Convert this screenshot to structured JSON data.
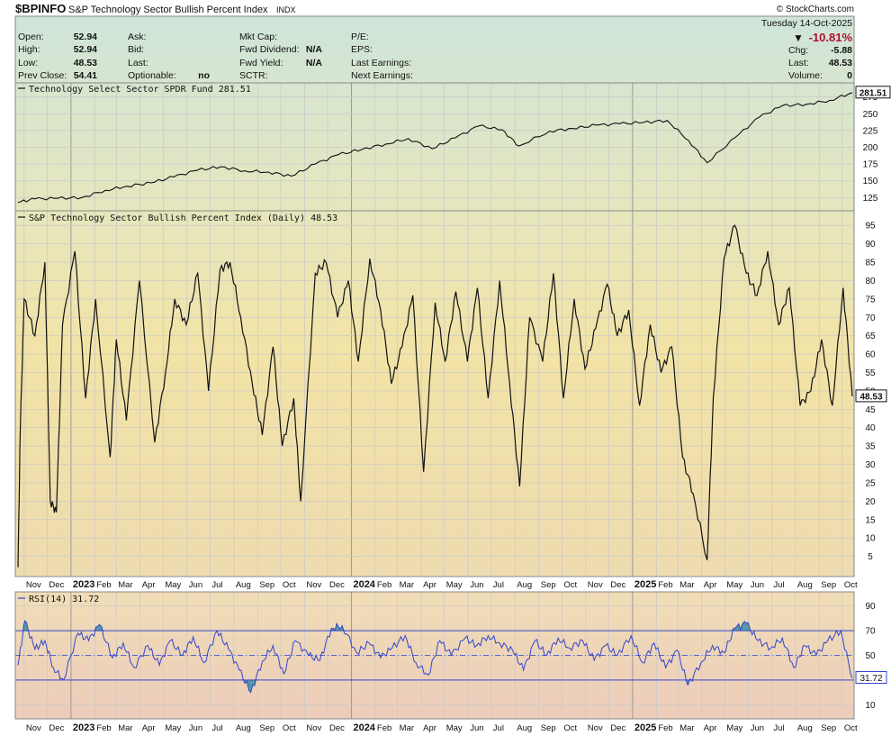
{
  "header": {
    "symbol": "$BPINFO",
    "name": "S&P Technology Sector Bullish Percent Index",
    "exchange": "INDX",
    "watermark": "© StockCharts.com",
    "date": "Tuesday  14-Oct-2025",
    "pct_change": "-10.81%",
    "down_arrow": "▼",
    "quote": {
      "open_label": "Open:",
      "open": "52.94",
      "high_label": "High:",
      "high": "52.94",
      "low_label": "Low:",
      "low": "48.53",
      "prev_label": "Prev Close:",
      "prev": "54.41",
      "ask_label": "Ask:",
      "bid_label": "Bid:",
      "last_label": "Last:",
      "optionable_label": "Optionable:",
      "optionable": "no",
      "mktcap_label": "Mkt Cap:",
      "fwd_div_label": "Fwd Dividend:",
      "fwd_div": "N/A",
      "fwd_yield_label": "Fwd Yield:",
      "fwd_yield": "N/A",
      "sctr_label": "SCTR:",
      "pe_label": "P/E:",
      "eps_label": "EPS:",
      "last_earn_label": "Last Earnings:",
      "next_earn_label": "Next Earnings:",
      "chg_label": "Chg:",
      "chg": "-5.88",
      "last2_label": "Last:",
      "last2": "48.53",
      "volume_label": "Volume:",
      "volume": "0"
    }
  },
  "colors": {
    "top_band": "#cfe5d9",
    "mid_band": "#f0e2a8",
    "rsi_bg": "#efd9b8",
    "line": "#111111",
    "rsi_line": "#3344cc",
    "rsi_fill": "#3a8fa0",
    "grid": "#c8c8c8",
    "down": "#b01030"
  },
  "chart_data": [
    {
      "type": "line",
      "title": "Technology Select Sector SPDR Fund 281.51",
      "last_value_label": "281.51",
      "yticks": [
        125,
        150,
        175,
        200,
        225,
        250,
        275
      ],
      "ylim": [
        108,
        292
      ],
      "x": [
        "2022-10-24",
        "2022-11-15",
        "2022-12-15",
        "2023-01-15",
        "2023-02-15",
        "2023-03-15",
        "2023-04-15",
        "2023-05-15",
        "2023-06-15",
        "2023-07-15",
        "2023-08-15",
        "2023-09-15",
        "2023-10-15",
        "2023-11-15",
        "2023-12-15",
        "2024-01-15",
        "2024-02-15",
        "2024-03-15",
        "2024-04-15",
        "2024-05-15",
        "2024-06-15",
        "2024-07-15",
        "2024-08-06",
        "2024-09-15",
        "2024-10-15",
        "2024-11-15",
        "2024-12-15",
        "2025-01-15",
        "2025-02-15",
        "2025-03-15",
        "2025-04-08",
        "2025-05-15",
        "2025-06-15",
        "2025-07-15",
        "2025-08-15",
        "2025-09-15",
        "2025-10-14"
      ],
      "values": [
        118,
        123,
        124,
        125,
        136,
        142,
        147,
        156,
        166,
        171,
        165,
        163,
        157,
        175,
        189,
        197,
        205,
        213,
        198,
        214,
        232,
        226,
        202,
        224,
        228,
        233,
        235,
        237,
        240,
        210,
        177,
        215,
        245,
        262,
        264,
        270,
        281.51
      ]
    },
    {
      "type": "line",
      "title": "S&P Technology Sector Bullish Percent Index (Daily) 48.53",
      "last_value_label": "48.53",
      "yticks": [
        5,
        10,
        15,
        20,
        25,
        30,
        35,
        40,
        45,
        50,
        55,
        60,
        65,
        70,
        75,
        80,
        85,
        90,
        95
      ],
      "ylim": [
        0,
        98
      ],
      "x": [
        "2022-10-24",
        "2022-10-27",
        "2022-11-01",
        "2022-11-15",
        "2022-11-28",
        "2022-12-05",
        "2022-12-13",
        "2022-12-21",
        "2023-01-06",
        "2023-01-20",
        "2023-02-02",
        "2023-02-21",
        "2023-03-01",
        "2023-03-14",
        "2023-03-31",
        "2023-04-20",
        "2023-05-04",
        "2023-05-16",
        "2023-05-31",
        "2023-06-15",
        "2023-06-29",
        "2023-07-14",
        "2023-07-27",
        "2023-08-10",
        "2023-08-25",
        "2023-09-07",
        "2023-09-21",
        "2023-10-03",
        "2023-10-18",
        "2023-10-27",
        "2023-11-15",
        "2023-11-29",
        "2023-12-14",
        "2023-12-28",
        "2024-01-10",
        "2024-01-25",
        "2024-02-08",
        "2024-02-22",
        "2024-03-07",
        "2024-03-21",
        "2024-04-04",
        "2024-04-19",
        "2024-05-02",
        "2024-05-16",
        "2024-05-31",
        "2024-06-13",
        "2024-06-27",
        "2024-07-12",
        "2024-07-25",
        "2024-08-07",
        "2024-08-20",
        "2024-09-06",
        "2024-09-20",
        "2024-10-03",
        "2024-10-17",
        "2024-10-31",
        "2024-11-14",
        "2024-11-29",
        "2024-12-12",
        "2024-12-27",
        "2025-01-10",
        "2025-01-24",
        "2025-02-07",
        "2025-02-21",
        "2025-03-07",
        "2025-03-21",
        "2025-04-08",
        "2025-04-16",
        "2025-04-30",
        "2025-05-14",
        "2025-05-29",
        "2025-06-12",
        "2025-06-26",
        "2025-07-10",
        "2025-07-24",
        "2025-08-07",
        "2025-08-21",
        "2025-09-04",
        "2025-09-18",
        "2025-10-02",
        "2025-10-14"
      ],
      "values": [
        2,
        40,
        75,
        65,
        85,
        20,
        17,
        68,
        88,
        48,
        75,
        32,
        64,
        42,
        80,
        36,
        55,
        75,
        68,
        82,
        50,
        83,
        85,
        70,
        52,
        38,
        62,
        35,
        48,
        20,
        82,
        85,
        70,
        80,
        58,
        86,
        72,
        52,
        62,
        76,
        28,
        74,
        58,
        77,
        58,
        78,
        48,
        80,
        52,
        24,
        70,
        58,
        82,
        48,
        75,
        56,
        67,
        79,
        65,
        72,
        46,
        68,
        55,
        62,
        32,
        22,
        4,
        48,
        86,
        95,
        82,
        76,
        88,
        68,
        78,
        46,
        50,
        64,
        46,
        78,
        48.53
      ]
    },
    {
      "type": "line",
      "title": "RSI(14) 31.72",
      "last_value_label": "31.72",
      "yticks": [
        10,
        30,
        50,
        70,
        90
      ],
      "ylim": [
        0,
        100
      ],
      "bands": [
        30,
        70
      ],
      "x": [
        "2022-10-24",
        "2022-11-02",
        "2022-11-15",
        "2022-11-28",
        "2022-12-09",
        "2022-12-22",
        "2023-01-10",
        "2023-01-24",
        "2023-02-07",
        "2023-02-24",
        "2023-03-10",
        "2023-03-24",
        "2023-04-11",
        "2023-04-26",
        "2023-05-10",
        "2023-05-26",
        "2023-06-09",
        "2023-06-23",
        "2023-07-10",
        "2023-07-25",
        "2023-08-08",
        "2023-08-23",
        "2023-09-07",
        "2023-09-21",
        "2023-10-05",
        "2023-10-20",
        "2023-11-06",
        "2023-11-21",
        "2023-12-06",
        "2023-12-20",
        "2024-01-08",
        "2024-01-24",
        "2024-02-08",
        "2024-02-23",
        "2024-03-11",
        "2024-03-25",
        "2024-04-10",
        "2024-04-25",
        "2024-05-10",
        "2024-05-28",
        "2024-06-12",
        "2024-06-27",
        "2024-07-12",
        "2024-07-29",
        "2024-08-12",
        "2024-08-27",
        "2024-09-11",
        "2024-09-26",
        "2024-10-11",
        "2024-10-28",
        "2024-11-12",
        "2024-11-27",
        "2024-12-12",
        "2024-12-30",
        "2025-01-14",
        "2025-01-29",
        "2025-02-13",
        "2025-02-28",
        "2025-03-14",
        "2025-03-31",
        "2025-04-15",
        "2025-04-30",
        "2025-05-14",
        "2025-05-29",
        "2025-06-13",
        "2025-06-30",
        "2025-07-15",
        "2025-07-30",
        "2025-08-13",
        "2025-08-28",
        "2025-09-12",
        "2025-09-29",
        "2025-10-14"
      ],
      "values": [
        42,
        78,
        55,
        62,
        40,
        30,
        68,
        62,
        75,
        48,
        60,
        40,
        58,
        42,
        62,
        50,
        65,
        44,
        70,
        55,
        38,
        20,
        45,
        58,
        35,
        62,
        50,
        46,
        72,
        74,
        52,
        60,
        48,
        56,
        66,
        44,
        34,
        62,
        50,
        64,
        58,
        66,
        60,
        54,
        38,
        62,
        50,
        64,
        56,
        62,
        46,
        58,
        50,
        66,
        44,
        60,
        40,
        54,
        26,
        44,
        58,
        52,
        72,
        76,
        62,
        56,
        64,
        40,
        58,
        50,
        62,
        70,
        31.72
      ]
    }
  ],
  "x_axis": {
    "labels": [
      {
        "d": "2022-11-01",
        "t": "Nov"
      },
      {
        "d": "2022-12-01",
        "t": "Dec"
      },
      {
        "d": "2023-01-01",
        "t": "2023",
        "year": true
      },
      {
        "d": "2023-02-01",
        "t": "Feb"
      },
      {
        "d": "2023-03-01",
        "t": "Mar"
      },
      {
        "d": "2023-04-01",
        "t": "Apr"
      },
      {
        "d": "2023-05-01",
        "t": "May"
      },
      {
        "d": "2023-06-01",
        "t": "Jun"
      },
      {
        "d": "2023-07-01",
        "t": "Jul"
      },
      {
        "d": "2023-08-01",
        "t": "Aug"
      },
      {
        "d": "2023-09-01",
        "t": "Sep"
      },
      {
        "d": "2023-10-01",
        "t": "Oct"
      },
      {
        "d": "2023-11-01",
        "t": "Nov"
      },
      {
        "d": "2023-12-01",
        "t": "Dec"
      },
      {
        "d": "2024-01-01",
        "t": "2024",
        "year": true
      },
      {
        "d": "2024-02-01",
        "t": "Feb"
      },
      {
        "d": "2024-03-01",
        "t": "Mar"
      },
      {
        "d": "2024-04-01",
        "t": "Apr"
      },
      {
        "d": "2024-05-01",
        "t": "May"
      },
      {
        "d": "2024-06-01",
        "t": "Jun"
      },
      {
        "d": "2024-07-01",
        "t": "Jul"
      },
      {
        "d": "2024-08-01",
        "t": "Aug"
      },
      {
        "d": "2024-09-01",
        "t": "Sep"
      },
      {
        "d": "2024-10-01",
        "t": "Oct"
      },
      {
        "d": "2024-11-01",
        "t": "Nov"
      },
      {
        "d": "2024-12-01",
        "t": "Dec"
      },
      {
        "d": "2025-01-01",
        "t": "2025",
        "year": true
      },
      {
        "d": "2025-02-01",
        "t": "Feb"
      },
      {
        "d": "2025-03-01",
        "t": "Mar"
      },
      {
        "d": "2025-04-01",
        "t": "Apr"
      },
      {
        "d": "2025-05-01",
        "t": "May"
      },
      {
        "d": "2025-06-01",
        "t": "Jun"
      },
      {
        "d": "2025-07-01",
        "t": "Jul"
      },
      {
        "d": "2025-08-01",
        "t": "Aug"
      },
      {
        "d": "2025-09-01",
        "t": "Sep"
      },
      {
        "d": "2025-10-01",
        "t": "Oct"
      }
    ]
  }
}
